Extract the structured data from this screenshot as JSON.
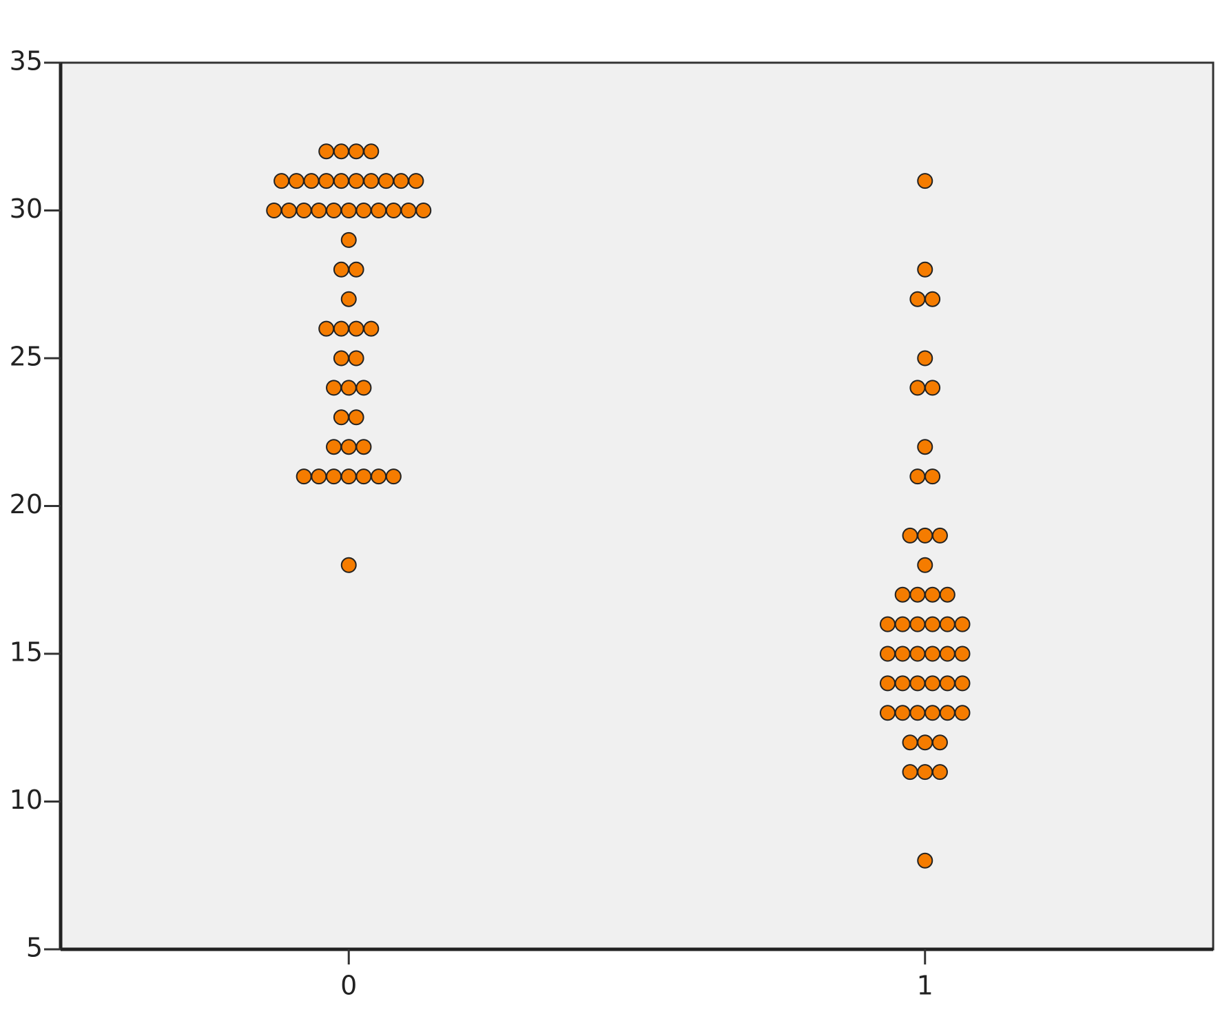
{
  "chart_data": {
    "type": "dot",
    "categories": [
      "0",
      "1"
    ],
    "values": [
      [
        32,
        32,
        32,
        32,
        31,
        31,
        31,
        31,
        31,
        31,
        31,
        31,
        31,
        31,
        30,
        30,
        30,
        30,
        30,
        30,
        30,
        30,
        30,
        30,
        30,
        29,
        28,
        28,
        27,
        26,
        26,
        26,
        26,
        25,
        25,
        24,
        24,
        24,
        23,
        23,
        22,
        22,
        22,
        21,
        21,
        21,
        21,
        21,
        21,
        21,
        18
      ],
      [
        31,
        28,
        27,
        27,
        25,
        24,
        24,
        22,
        21,
        21,
        19,
        19,
        19,
        18,
        17,
        17,
        17,
        17,
        16,
        16,
        16,
        16,
        16,
        16,
        15,
        15,
        15,
        15,
        15,
        15,
        14,
        14,
        14,
        14,
        14,
        14,
        13,
        13,
        13,
        13,
        13,
        13,
        12,
        12,
        12,
        11,
        11,
        11,
        8
      ]
    ],
    "color": "#f57c00",
    "ylim": [
      5,
      35
    ],
    "yticks": [
      5,
      10,
      15,
      20,
      25,
      30,
      35
    ]
  }
}
